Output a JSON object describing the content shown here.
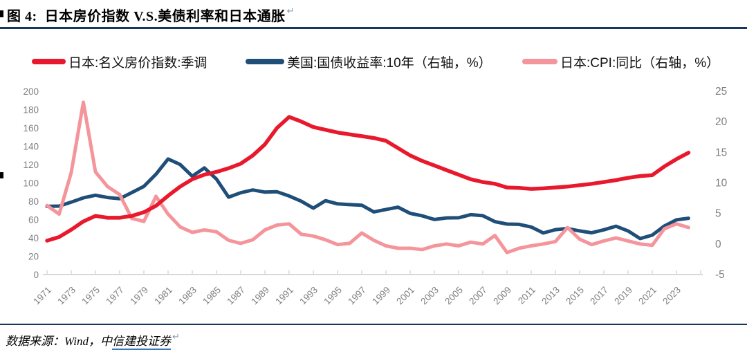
{
  "header": {
    "title": "图 4:  日本房价指数 V.S.美债利率和日本通胀",
    "return_mark": "↵"
  },
  "legend": {
    "items": [
      {
        "label": "日本:名义房价指数:季调",
        "color": "#e8192c"
      },
      {
        "label": "美国:国债收益率:10年（右轴，%）",
        "color": "#1f4e79"
      },
      {
        "label": "日本:CPI:同比（右轴，%）",
        "color": "#f4959b"
      }
    ]
  },
  "footer": {
    "source_prefix": "数据来源：Wind，中",
    "source_link": "信建投证券",
    "return_mark": "↵"
  },
  "chart_data": {
    "type": "line",
    "title": "日本房价指数 V.S.美债利率和日本通胀",
    "grid": false,
    "legend_position": "top",
    "x": [
      1971,
      1972,
      1973,
      1974,
      1975,
      1976,
      1977,
      1978,
      1979,
      1980,
      1981,
      1982,
      1983,
      1984,
      1985,
      1986,
      1987,
      1988,
      1989,
      1990,
      1991,
      1992,
      1993,
      1994,
      1995,
      1996,
      1997,
      1998,
      1999,
      2000,
      2001,
      2002,
      2003,
      2004,
      2005,
      2006,
      2007,
      2008,
      2009,
      2010,
      2011,
      2012,
      2013,
      2014,
      2015,
      2016,
      2017,
      2018,
      2019,
      2020,
      2021,
      2022,
      2023,
      2024
    ],
    "x_tick_labels": [
      "1971",
      "1973",
      "1975",
      "1977",
      "1979",
      "1981",
      "1983",
      "1985",
      "1987",
      "1989",
      "1991",
      "1993",
      "1995",
      "1997",
      "1999",
      "2001",
      "2003",
      "2005",
      "2007",
      "2009",
      "2011",
      "2013",
      "2015",
      "2017",
      "2019",
      "2021",
      "2023"
    ],
    "y_left_ticks": [
      0,
      20,
      40,
      60,
      80,
      100,
      120,
      140,
      160,
      180,
      200
    ],
    "y_right_ticks": [
      -5,
      0,
      5,
      10,
      15,
      20,
      25
    ],
    "ylim_left": [
      0,
      200
    ],
    "ylim_right": [
      -5,
      25
    ],
    "series": [
      {
        "name": "日本:名义房价指数:季调",
        "axis": "left",
        "color": "#e8192c",
        "values": [
          37,
          41,
          49,
          58,
          64,
          62,
          62,
          64,
          68,
          75,
          86,
          96,
          104,
          109,
          112,
          116,
          121,
          130,
          142,
          160,
          172,
          167,
          161,
          158,
          155,
          153,
          151,
          149,
          146,
          138,
          130,
          124,
          119,
          114,
          109,
          104,
          101,
          99,
          95,
          94.5,
          93.5,
          94,
          95,
          96,
          97.5,
          99,
          101,
          103,
          105.5,
          107.5,
          108.5,
          118,
          126,
          133
        ]
      },
      {
        "name": "美国:国债收益率:10年（右轴，%）",
        "axis": "right",
        "color": "#1f4e79",
        "values": [
          6.16,
          6.21,
          6.85,
          7.56,
          7.99,
          7.61,
          7.42,
          8.41,
          9.43,
          11.43,
          13.92,
          13.01,
          11.1,
          12.46,
          10.62,
          7.67,
          8.39,
          8.85,
          8.49,
          8.55,
          7.86,
          7.01,
          5.87,
          7.09,
          6.57,
          6.44,
          6.35,
          5.26,
          5.65,
          6.03,
          5.02,
          4.61,
          4.01,
          4.27,
          4.29,
          4.8,
          4.63,
          3.66,
          3.26,
          3.22,
          2.78,
          1.8,
          2.35,
          2.54,
          2.14,
          1.84,
          2.33,
          2.91,
          2.14,
          0.89,
          1.45,
          2.95,
          3.96,
          4.21
        ]
      },
      {
        "name": "日本:CPI:同比（右轴，%）",
        "axis": "right",
        "color": "#f4959b",
        "values": [
          6.3,
          4.9,
          11.7,
          23.2,
          11.8,
          9.4,
          8.1,
          4.2,
          3.7,
          7.8,
          4.9,
          2.8,
          1.9,
          2.3,
          2.0,
          0.6,
          0.1,
          0.7,
          2.3,
          3.1,
          3.3,
          1.6,
          1.3,
          0.7,
          -0.1,
          0.1,
          1.8,
          0.6,
          -0.3,
          -0.7,
          -0.7,
          -0.9,
          -0.3,
          0.0,
          -0.3,
          0.3,
          0.0,
          1.4,
          -1.4,
          -0.7,
          -0.3,
          0.0,
          0.4,
          2.7,
          0.8,
          -0.1,
          0.5,
          1.0,
          0.5,
          0.0,
          -0.2,
          2.5,
          3.3,
          2.7
        ]
      }
    ]
  }
}
